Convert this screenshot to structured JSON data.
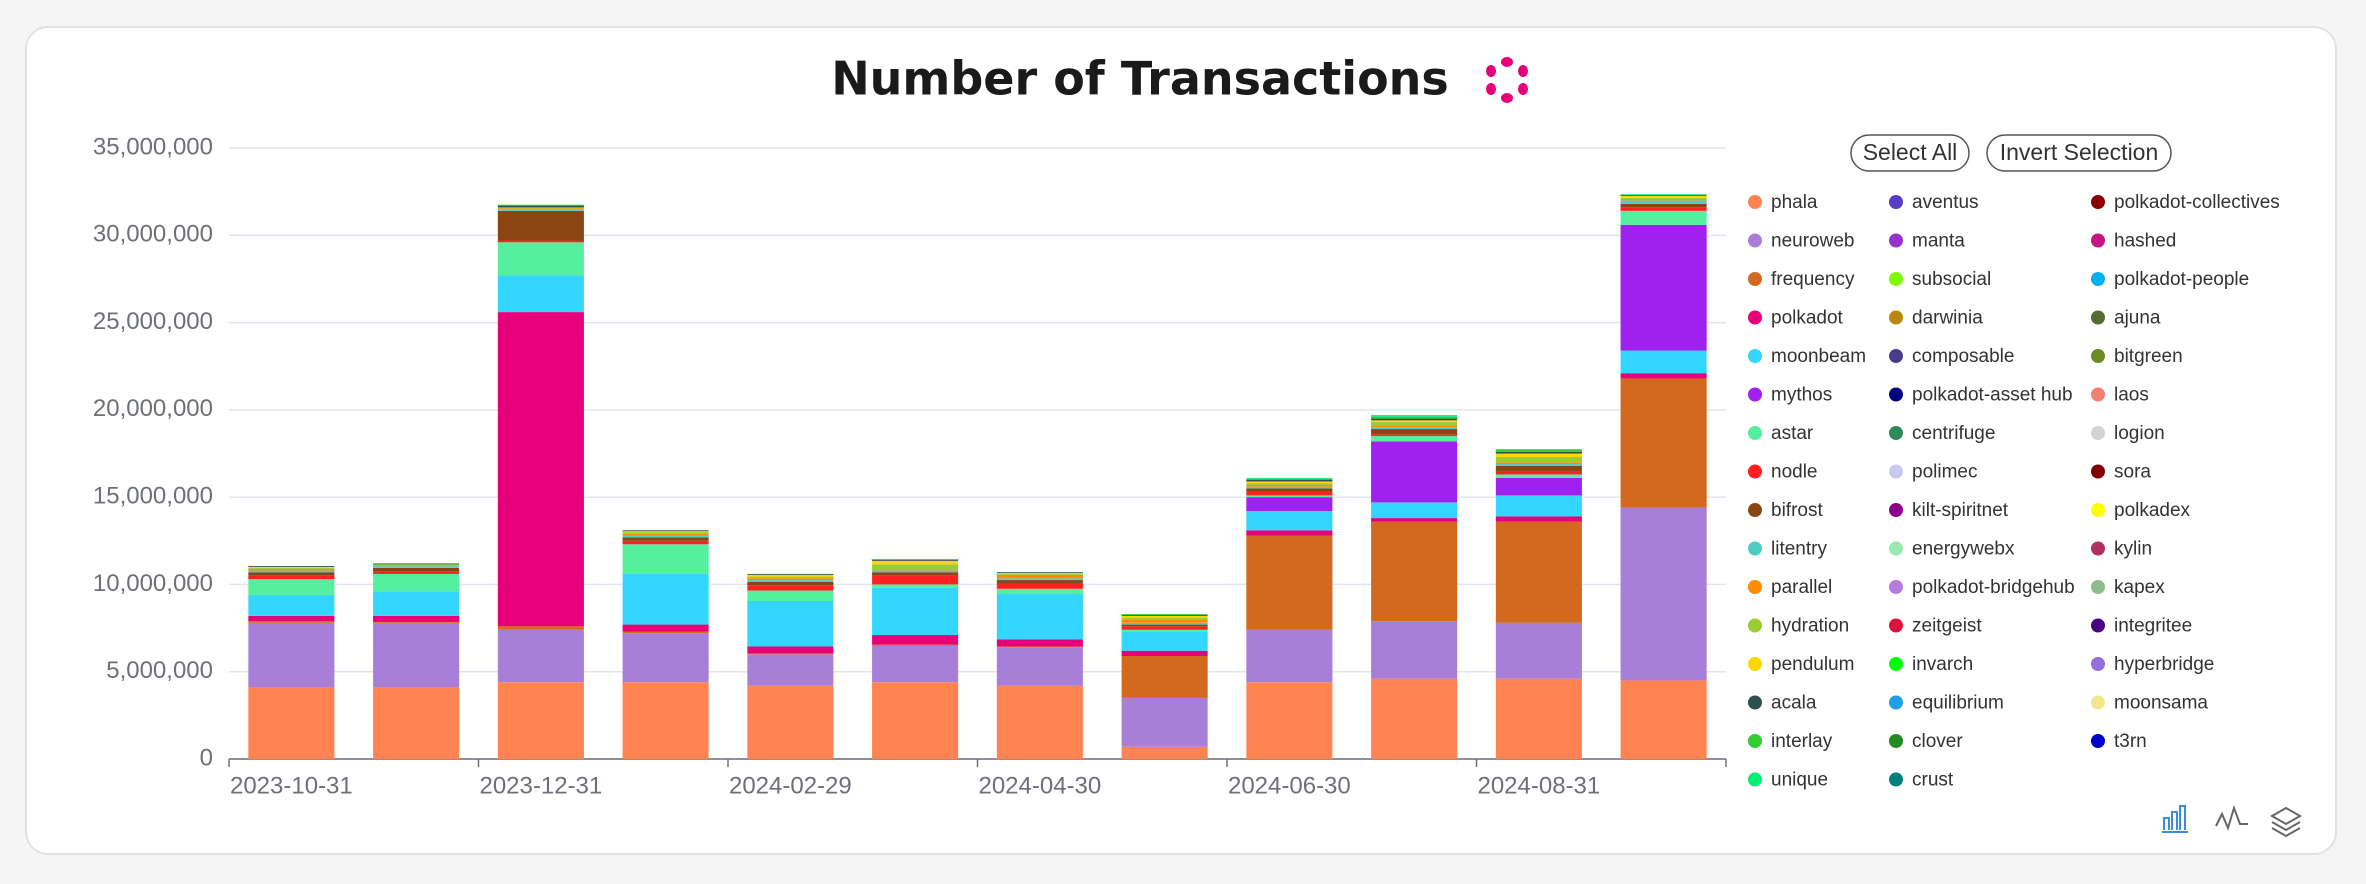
{
  "chart_data": {
    "type": "stacked_bar",
    "title": "Number of Transactions",
    "buttons": [
      "Select All",
      "Invert Selection"
    ],
    "categories": [
      "2023-10-31",
      null,
      "2023-12-31",
      null,
      "2024-02-29",
      null,
      "2024-04-30",
      null,
      "2024-06-30",
      null,
      "2024-08-31",
      null
    ],
    "ylim": [
      0,
      35000000
    ],
    "yticks": [
      0,
      {
        "value": 5000000,
        "label": "5,000,000"
      },
      {
        "value": 10000000,
        "label": "10,000,000"
      },
      {
        "value": 15000000,
        "label": "15,000,000"
      },
      {
        "value": 20000000,
        "label": "20,000,000"
      },
      {
        "value": 25000000,
        "label": "25,000,000"
      },
      {
        "value": 30000000,
        "label": "30,000,000"
      },
      {
        "value": 35000000,
        "label": "35,000,000"
      }
    ],
    "grid": true,
    "series": [
      {
        "name": "phala",
        "color": "#ff8452",
        "values": [
          4100000,
          4100000,
          4400000,
          4400000,
          4200000,
          4400000,
          4200000,
          700000,
          4400000,
          4600000,
          4600000,
          4500000
        ]
      },
      {
        "name": "neuroweb",
        "color": "#a77fd9",
        "values": [
          3700000,
          3700000,
          3000000,
          2800000,
          1800000,
          2100000,
          2200000,
          2800000,
          3000000,
          3300000,
          3200000,
          9900000
        ]
      },
      {
        "name": "frequency",
        "color": "#d2691e",
        "values": [
          100000,
          50000,
          200000,
          100000,
          50000,
          50000,
          50000,
          2400000,
          5400000,
          5700000,
          5800000,
          7400000
        ]
      },
      {
        "name": "polkadot",
        "color": "#e6007a",
        "values": [
          300000,
          350000,
          18000000,
          400000,
          400000,
          550000,
          400000,
          300000,
          300000,
          200000,
          300000,
          300000
        ]
      },
      {
        "name": "moonbeam",
        "color": "#33d6ff",
        "values": [
          1200000,
          1400000,
          2100000,
          2900000,
          2600000,
          2700000,
          2600000,
          1100000,
          1100000,
          900000,
          1200000,
          1300000
        ]
      },
      {
        "name": "mythos",
        "color": "#a020f0",
        "values": [
          0,
          0,
          0,
          0,
          0,
          0,
          0,
          0,
          800000,
          3500000,
          1000000,
          7200000
        ]
      },
      {
        "name": "astar",
        "color": "#55efa0",
        "values": [
          900000,
          1000000,
          1900000,
          1700000,
          600000,
          200000,
          300000,
          100000,
          100000,
          300000,
          200000,
          800000
        ]
      },
      {
        "name": "nodle",
        "color": "#ff2020",
        "values": [
          200000,
          150000,
          100000,
          200000,
          300000,
          500000,
          300000,
          200000,
          200000,
          100000,
          200000,
          200000
        ]
      },
      {
        "name": "bifrost",
        "color": "#8b4513",
        "values": [
          200000,
          200000,
          1700000,
          200000,
          200000,
          200000,
          200000,
          100000,
          200000,
          300000,
          300000,
          200000
        ]
      },
      {
        "name": "litentry",
        "color": "#4ecdc4",
        "values": [
          100000,
          100000,
          100000,
          100000,
          100000,
          100000,
          100000,
          100000,
          100000,
          100000,
          100000,
          200000
        ]
      },
      {
        "name": "parallel",
        "color": "#ff8c00",
        "values": [
          100000,
          50000,
          50000,
          100000,
          100000,
          50000,
          200000,
          200000,
          100000,
          100000,
          100000,
          50000
        ]
      },
      {
        "name": "hydration",
        "color": "#9acd32",
        "values": [
          50000,
          50000,
          50000,
          100000,
          100000,
          300000,
          50000,
          100000,
          100000,
          200000,
          300000,
          100000
        ]
      },
      {
        "name": "pendulum",
        "color": "#ffd700",
        "values": [
          50000,
          0,
          0,
          50000,
          100000,
          200000,
          50000,
          100000,
          100000,
          100000,
          200000,
          100000
        ]
      },
      {
        "name": "acala",
        "color": "#2f4f4f",
        "values": [
          50000,
          50000,
          100000,
          50000,
          50000,
          50000,
          50000,
          50000,
          100000,
          100000,
          100000,
          50000
        ]
      },
      {
        "name": "interlay",
        "color": "#32cd32",
        "values": [
          0,
          0,
          50000,
          0,
          0,
          50000,
          0,
          50000,
          50000,
          100000,
          100000,
          0
        ]
      },
      {
        "name": "unique",
        "color": "#00ee76",
        "values": [
          0,
          0,
          0,
          0,
          0,
          0,
          0,
          0,
          50000,
          100000,
          50000,
          50000
        ]
      },
      {
        "name": "aventus",
        "color": "#5b3cc4",
        "values": [
          0,
          0,
          0,
          0,
          0,
          0,
          0,
          0,
          0,
          0,
          0,
          0
        ]
      },
      {
        "name": "manta",
        "color": "#9932cc",
        "values": [
          0,
          0,
          0,
          0,
          0,
          0,
          0,
          0,
          0,
          0,
          0,
          0
        ]
      },
      {
        "name": "subsocial",
        "color": "#7cfc00",
        "values": [
          0,
          0,
          0,
          0,
          0,
          0,
          0,
          0,
          0,
          0,
          0,
          0
        ]
      },
      {
        "name": "darwinia",
        "color": "#b8860b",
        "values": [
          0,
          0,
          0,
          0,
          0,
          0,
          0,
          0,
          0,
          0,
          0,
          0
        ]
      },
      {
        "name": "composable",
        "color": "#483d8b",
        "values": [
          0,
          0,
          0,
          0,
          0,
          0,
          0,
          0,
          0,
          0,
          0,
          0
        ]
      },
      {
        "name": "polkadot-asset hub",
        "color": "#000080",
        "values": [
          0,
          0,
          0,
          0,
          0,
          0,
          0,
          0,
          0,
          0,
          0,
          0
        ]
      },
      {
        "name": "centrifuge",
        "color": "#2e8b57",
        "values": [
          0,
          0,
          0,
          0,
          0,
          0,
          0,
          0,
          0,
          0,
          0,
          0
        ]
      },
      {
        "name": "polimec",
        "color": "#c9c9f0",
        "values": [
          0,
          0,
          0,
          0,
          0,
          0,
          0,
          0,
          0,
          0,
          0,
          0
        ]
      },
      {
        "name": "kilt-spiritnet",
        "color": "#8b008b",
        "values": [
          0,
          0,
          0,
          0,
          0,
          0,
          0,
          0,
          0,
          0,
          0,
          0
        ]
      },
      {
        "name": "energywebx",
        "color": "#98e8b0",
        "values": [
          0,
          0,
          0,
          0,
          0,
          0,
          0,
          0,
          0,
          0,
          0,
          0
        ]
      },
      {
        "name": "polkadot-bridgehub",
        "color": "#b57edc",
        "values": [
          0,
          0,
          0,
          0,
          0,
          0,
          0,
          0,
          0,
          0,
          0,
          0
        ]
      },
      {
        "name": "zeitgeist",
        "color": "#dc143c",
        "values": [
          0,
          0,
          0,
          0,
          0,
          0,
          0,
          0,
          0,
          0,
          0,
          0
        ]
      },
      {
        "name": "invarch",
        "color": "#00ff00",
        "values": [
          0,
          0,
          0,
          0,
          0,
          0,
          0,
          0,
          0,
          0,
          0,
          0
        ]
      },
      {
        "name": "equilibrium",
        "color": "#1e9fe8",
        "values": [
          0,
          0,
          0,
          0,
          0,
          0,
          0,
          0,
          0,
          0,
          0,
          0
        ]
      },
      {
        "name": "clover",
        "color": "#228b22",
        "values": [
          0,
          0,
          0,
          0,
          0,
          0,
          0,
          0,
          0,
          0,
          0,
          0
        ]
      },
      {
        "name": "crust",
        "color": "#008080",
        "values": [
          0,
          0,
          0,
          0,
          0,
          0,
          0,
          0,
          0,
          0,
          0,
          0
        ]
      },
      {
        "name": "polkadot-collectives",
        "color": "#8b0000",
        "values": [
          0,
          0,
          0,
          0,
          0,
          0,
          0,
          0,
          0,
          0,
          0,
          0
        ]
      },
      {
        "name": "hashed",
        "color": "#c71585",
        "values": [
          0,
          0,
          0,
          0,
          0,
          0,
          0,
          0,
          0,
          0,
          0,
          0
        ]
      },
      {
        "name": "polkadot-people",
        "color": "#00b0f0",
        "values": [
          0,
          0,
          0,
          0,
          0,
          0,
          0,
          0,
          0,
          0,
          0,
          0
        ]
      },
      {
        "name": "ajuna",
        "color": "#556b2f",
        "values": [
          0,
          0,
          0,
          0,
          0,
          0,
          0,
          0,
          0,
          0,
          0,
          0
        ]
      },
      {
        "name": "bitgreen",
        "color": "#6b8e23",
        "values": [
          0,
          0,
          0,
          0,
          0,
          0,
          0,
          0,
          0,
          0,
          0,
          0
        ]
      },
      {
        "name": "laos",
        "color": "#f08070",
        "values": [
          0,
          0,
          0,
          0,
          0,
          0,
          0,
          0,
          0,
          0,
          0,
          0
        ]
      },
      {
        "name": "logion",
        "color": "#d3d3d3",
        "values": [
          0,
          0,
          0,
          0,
          0,
          0,
          0,
          0,
          0,
          0,
          0,
          0
        ]
      },
      {
        "name": "sora",
        "color": "#800000",
        "values": [
          0,
          0,
          0,
          0,
          0,
          0,
          0,
          0,
          0,
          0,
          0,
          0
        ]
      },
      {
        "name": "polkadex",
        "color": "#ffff00",
        "values": [
          0,
          0,
          0,
          0,
          0,
          0,
          0,
          0,
          0,
          0,
          0,
          0
        ]
      },
      {
        "name": "kylin",
        "color": "#b03060",
        "values": [
          0,
          0,
          0,
          0,
          0,
          0,
          0,
          0,
          0,
          0,
          0,
          0
        ]
      },
      {
        "name": "kapex",
        "color": "#8fbc8f",
        "values": [
          0,
          0,
          0,
          0,
          0,
          0,
          0,
          0,
          0,
          0,
          0,
          0
        ]
      },
      {
        "name": "integritee",
        "color": "#4b0082",
        "values": [
          0,
          0,
          0,
          0,
          0,
          0,
          0,
          0,
          0,
          0,
          0,
          0
        ]
      },
      {
        "name": "hyperbridge",
        "color": "#9370db",
        "values": [
          0,
          0,
          0,
          0,
          0,
          0,
          0,
          0,
          0,
          0,
          0,
          0
        ]
      },
      {
        "name": "moonsama",
        "color": "#f0e68c",
        "values": [
          0,
          0,
          0,
          0,
          0,
          0,
          0,
          0,
          0,
          0,
          0,
          0
        ]
      },
      {
        "name": "t3rn",
        "color": "#0000cd",
        "values": [
          0,
          0,
          0,
          0,
          0,
          0,
          0,
          0,
          0,
          0,
          0,
          0
        ]
      }
    ]
  }
}
